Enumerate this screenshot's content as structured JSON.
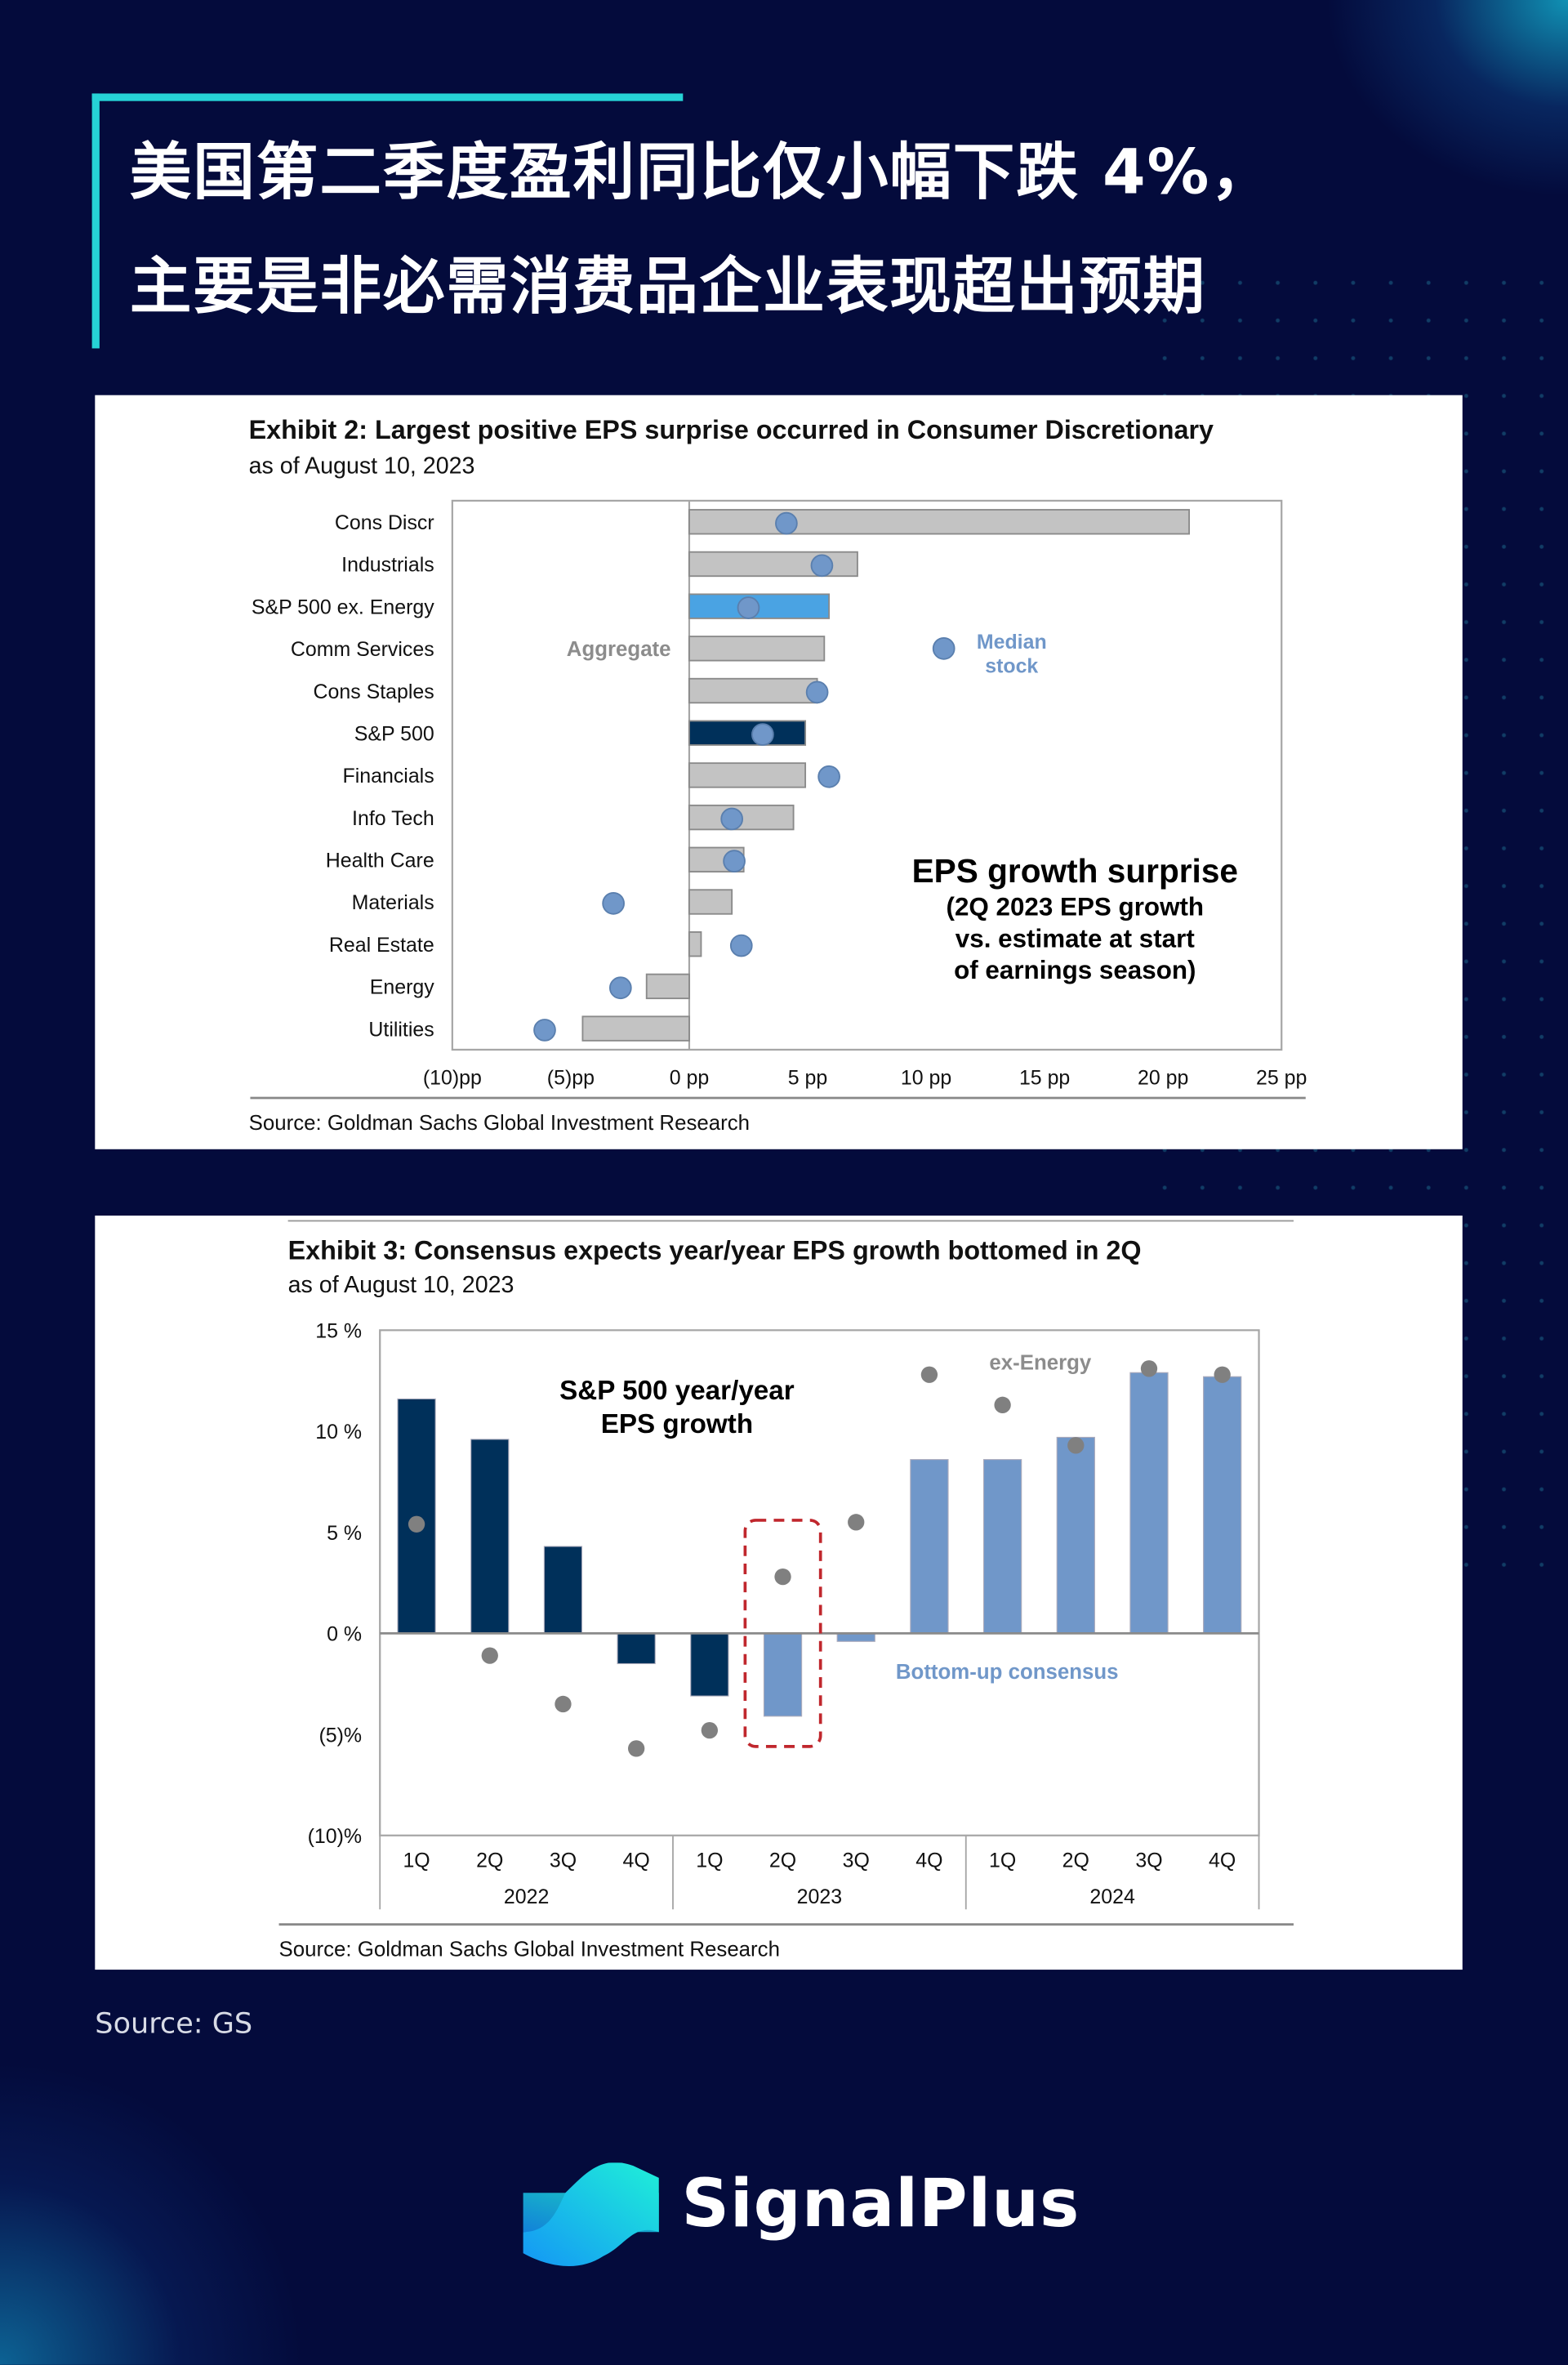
{
  "header": {
    "title_line1": "美国第二季度盈利同比仅小幅下跌 4%，",
    "title_line2": "主要是非必需消费品企业表现超出预期"
  },
  "colors": {
    "background": "#040b3c",
    "accent": "#26d3d6",
    "bar_gray": "#c3c3c3",
    "sp500_navy": "#00305a",
    "exenergy_blue": "#4aa3e3",
    "median_dot": "#7097c9",
    "consensus_blue": "#7097c9",
    "ex_energy_dot": "#808080",
    "highlight_red": "#c0272d"
  },
  "exhibit2": {
    "title": "Exhibit 2: Largest positive EPS surprise occurred in Consumer Discretionary",
    "subtitle": "as of August 10, 2023",
    "source": "Source: Goldman Sachs Global Investment Research",
    "chart_data": {
      "type": "bar",
      "orientation": "horizontal",
      "categories": [
        "Cons Discr",
        "Industrials",
        "S&P 500 ex. Energy",
        "Comm Services",
        "Cons Staples",
        "S&P 500",
        "Financials",
        "Info Tech",
        "Health Care",
        "Materials",
        "Real Estate",
        "Energy",
        "Utilities"
      ],
      "series": [
        {
          "name": "Aggregate",
          "type": "bar",
          "values": [
            21.1,
            7.1,
            5.9,
            5.7,
            5.4,
            4.9,
            4.9,
            4.4,
            2.3,
            1.8,
            0.5,
            -1.8,
            -4.5
          ]
        },
        {
          "name": "Median stock",
          "type": "scatter",
          "values": [
            4.1,
            5.6,
            2.5,
            null,
            5.4,
            3.1,
            5.9,
            1.8,
            1.9,
            -3.2,
            2.2,
            -2.9,
            -6.1
          ]
        }
      ],
      "xlim": [
        -10,
        25
      ],
      "xticks": [
        -10,
        -5,
        0,
        5,
        10,
        15,
        20,
        25
      ],
      "xtick_labels": [
        "(10)pp",
        "(5)pp",
        "0 pp",
        "5 pp",
        "10 pp",
        "15 pp",
        "20 pp",
        "25 pp"
      ],
      "annotation_title": "EPS growth surprise",
      "annotation_lines": [
        "(2Q 2023 EPS growth",
        "vs. estimate at start",
        "of earnings season)"
      ],
      "label_aggregate": "Aggregate",
      "label_median": [
        "Median",
        "stock"
      ],
      "grid": false
    }
  },
  "exhibit3": {
    "title": "Exhibit 3: Consensus expects year/year EPS growth bottomed in 2Q",
    "subtitle": "as of August 10, 2023",
    "source": "Source: Goldman Sachs Global Investment Research",
    "chart_data": {
      "type": "bar",
      "categories": [
        "1Q",
        "2Q",
        "3Q",
        "4Q",
        "1Q",
        "2Q",
        "3Q",
        "4Q",
        "1Q",
        "2Q",
        "3Q",
        "4Q"
      ],
      "groups": [
        {
          "label": "2022",
          "count": 4
        },
        {
          "label": "2023",
          "count": 4
        },
        {
          "label": "2024",
          "count": 4
        }
      ],
      "series": [
        {
          "name": "S&P 500 year/year EPS growth",
          "type": "bar",
          "values": [
            11.6,
            9.6,
            4.3,
            -1.5,
            -3.1,
            -4.1,
            -0.4,
            8.6,
            8.6,
            9.7,
            12.9,
            12.7
          ],
          "actual_count": 5
        },
        {
          "name": "ex-Energy",
          "type": "scatter",
          "values": [
            5.4,
            -1.1,
            -3.5,
            -5.7,
            -4.8,
            2.8,
            5.5,
            12.8,
            11.3,
            9.3,
            13.1,
            12.8
          ]
        }
      ],
      "ylim": [
        -10,
        15
      ],
      "yticks": [
        15,
        10,
        5,
        0,
        -5,
        -10
      ],
      "ytick_labels": [
        "15 %",
        "10 %",
        "5 %",
        "0 %",
        "(5)%",
        "(10)%"
      ],
      "chart_label": [
        "S&P 500 year/year",
        "EPS growth"
      ],
      "label_ex_energy": "ex-Energy",
      "label_consensus": "Bottom-up consensus",
      "highlight_index": 5,
      "grid": false
    }
  },
  "footer": {
    "source": "Source: GS",
    "brand": "SignalPlus"
  }
}
